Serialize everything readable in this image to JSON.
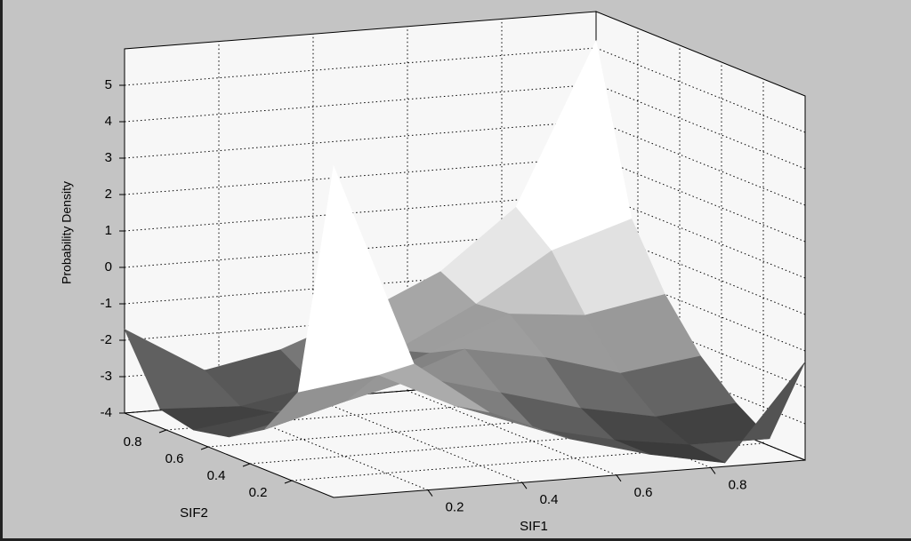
{
  "chart_data": {
    "type": "surface",
    "xlabel": "SIF1",
    "ylabel": "SIF2",
    "zlabel": "Probability Density",
    "x": [
      0,
      0.17,
      0.33,
      0.5,
      0.67,
      0.83,
      1
    ],
    "y": [
      0,
      0.17,
      0.33,
      0.5,
      0.67,
      0.83,
      1
    ],
    "z": [
      [
        5.1,
        -0.5,
        -2.0,
        -2.9,
        -3.5,
        -3.9,
        -1.3
      ],
      [
        -1.5,
        -1.2,
        -2.2,
        -3.0,
        -3.5,
        -3.8,
        -3.8
      ],
      [
        -2.9,
        -2.3,
        -1.8,
        -2.4,
        -3.0,
        -3.4,
        -3.2
      ],
      [
        -3.5,
        -3.0,
        -2.4,
        -1.6,
        -2.0,
        -2.6,
        -2.3
      ],
      [
        -3.7,
        -3.4,
        -2.9,
        -2.1,
        -1.2,
        -1.4,
        -1.0
      ],
      [
        -3.5,
        -3.6,
        -3.2,
        -2.4,
        -1.3,
        0.0,
        0.7
      ],
      [
        -1.7,
        -3.0,
        -2.6,
        -1.8,
        -0.8,
        0.8,
        5.2
      ]
    ],
    "xlim": [
      0,
      1
    ],
    "ylim": [
      0,
      1
    ],
    "zlim": [
      -4,
      6
    ],
    "xticks": [
      0.2,
      0.4,
      0.6,
      0.8
    ],
    "yticks": [
      0.2,
      0.4,
      0.6,
      0.8
    ],
    "zticks": [
      -4,
      -3,
      -2,
      -1,
      0,
      1,
      2,
      3,
      4,
      5
    ],
    "grid": true,
    "colormap": [
      "#2a2a2a",
      "#ffffff"
    ]
  }
}
